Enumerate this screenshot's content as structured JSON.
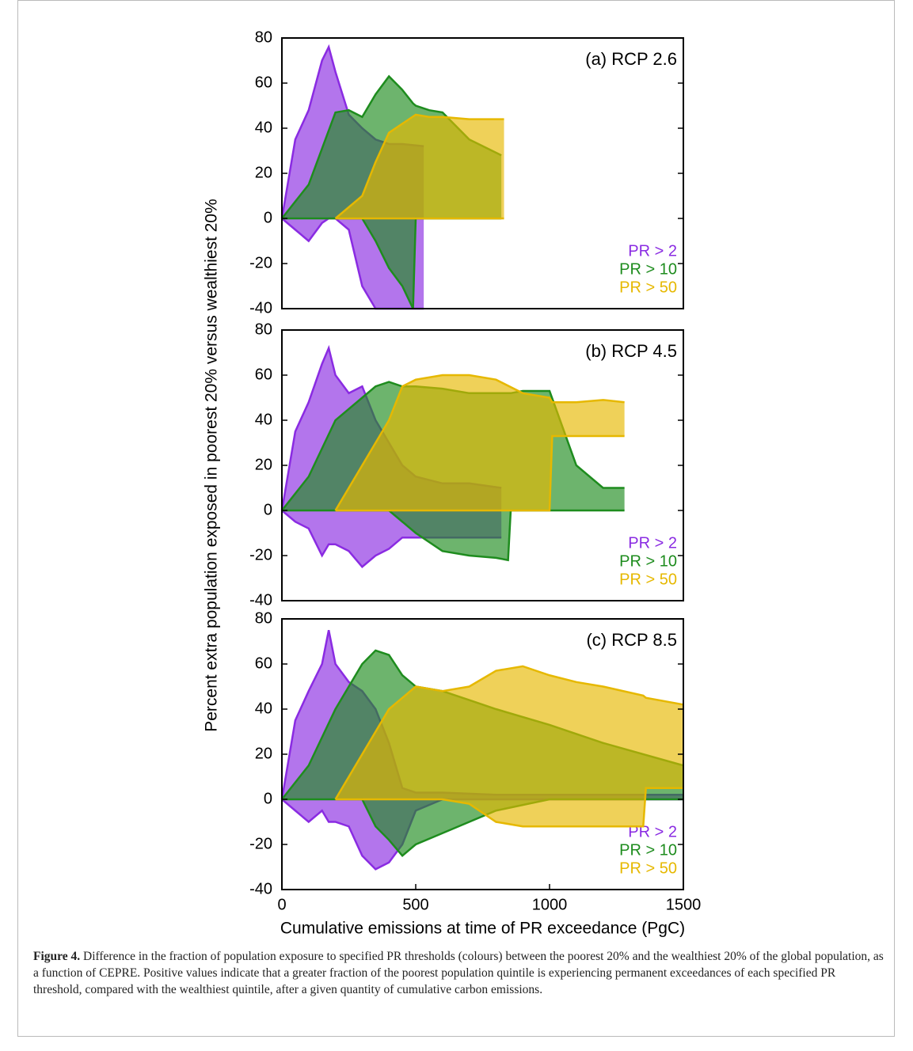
{
  "chart_data": [
    {
      "type": "band",
      "annotation": "(a) RCP 2.6",
      "xlim": [
        0,
        1500
      ],
      "ylim": [
        -40,
        80
      ],
      "yticks": [
        -40,
        -20,
        0,
        20,
        40,
        60,
        80
      ],
      "series": [
        {
          "name": "PR > 2",
          "color": "#8a2be2",
          "x": [
            0,
            50,
            100,
            150,
            175,
            200,
            250,
            300,
            350,
            400,
            450,
            530
          ],
          "upper": [
            0,
            35,
            48,
            70,
            76,
            65,
            46,
            40,
            35,
            33,
            33,
            32
          ],
          "lower": [
            0,
            -5,
            -10,
            -2,
            0,
            0,
            -5,
            -30,
            -40,
            -40,
            -40,
            -40
          ]
        },
        {
          "name": "PR > 10",
          "color": "#1e8c1e",
          "x": [
            0,
            100,
            200,
            250,
            300,
            350,
            400,
            450,
            490,
            500,
            550,
            600,
            700,
            820
          ],
          "upper": [
            0,
            15,
            47,
            48,
            45,
            55,
            63,
            57,
            51,
            50,
            48,
            47,
            35,
            28
          ],
          "lower": [
            0,
            0,
            0,
            0,
            0,
            -10,
            -22,
            -30,
            -40,
            0,
            0,
            0,
            0,
            0
          ]
        },
        {
          "name": "PR > 50",
          "color": "#e6b800",
          "x": [
            200,
            300,
            350,
            400,
            450,
            500,
            550,
            600,
            700,
            830
          ],
          "upper": [
            0,
            10,
            25,
            38,
            42,
            46,
            45,
            45,
            44,
            44
          ],
          "lower": [
            0,
            0,
            0,
            0,
            0,
            0,
            0,
            0,
            0,
            0
          ]
        }
      ]
    },
    {
      "type": "band",
      "annotation": "(b) RCP 4.5",
      "ylabel": "Percent extra population exposed in poorest 20% versus wealthiest 20%",
      "xlim": [
        0,
        1500
      ],
      "ylim": [
        -40,
        80
      ],
      "yticks": [
        -40,
        -20,
        0,
        20,
        40,
        60,
        80
      ],
      "series": [
        {
          "name": "PR > 2",
          "color": "#8a2be2",
          "x": [
            0,
            50,
            100,
            150,
            175,
            200,
            250,
            300,
            350,
            400,
            450,
            500,
            600,
            700,
            820
          ],
          "upper": [
            0,
            35,
            48,
            65,
            72,
            60,
            52,
            55,
            40,
            30,
            20,
            15,
            12,
            12,
            10
          ],
          "lower": [
            0,
            -5,
            -8,
            -20,
            -15,
            -15,
            -18,
            -25,
            -20,
            -17,
            -12,
            -12,
            -12,
            -12,
            -12
          ]
        },
        {
          "name": "PR > 10",
          "color": "#1e8c1e",
          "x": [
            0,
            100,
            200,
            300,
            350,
            400,
            450,
            500,
            600,
            700,
            800,
            845,
            855,
            900,
            1000,
            1100,
            1200,
            1280
          ],
          "upper": [
            0,
            15,
            40,
            50,
            55,
            57,
            55,
            55,
            54,
            52,
            52,
            52,
            52,
            53,
            53,
            20,
            10,
            10
          ],
          "lower": [
            0,
            0,
            0,
            0,
            0,
            0,
            -5,
            -10,
            -18,
            -20,
            -21,
            -22,
            0,
            0,
            0,
            0,
            0,
            0
          ]
        },
        {
          "name": "PR > 50",
          "color": "#e6b800",
          "x": [
            200,
            300,
            400,
            450,
            500,
            600,
            700,
            800,
            900,
            1000,
            1010,
            1100,
            1200,
            1280
          ],
          "upper": [
            0,
            20,
            40,
            55,
            58,
            60,
            60,
            58,
            52,
            50,
            48,
            48,
            49,
            48
          ],
          "lower": [
            0,
            0,
            0,
            0,
            0,
            0,
            0,
            0,
            0,
            0,
            33,
            33,
            33,
            33
          ]
        }
      ]
    },
    {
      "type": "band",
      "annotation": "(c) RCP 8.5",
      "xlabel": "Cumulative emissions at time of PR exceedance (PgC)",
      "xlim": [
        0,
        1500
      ],
      "xticks": [
        0,
        500,
        1000,
        1500
      ],
      "ylim": [
        -40,
        80
      ],
      "yticks": [
        -40,
        -20,
        0,
        20,
        40,
        60,
        80
      ],
      "series": [
        {
          "name": "PR > 2",
          "color": "#8a2be2",
          "x": [
            0,
            50,
            100,
            150,
            175,
            200,
            250,
            300,
            350,
            400,
            450,
            500,
            600,
            800,
            1000,
            1500
          ],
          "upper": [
            0,
            35,
            48,
            60,
            75,
            60,
            52,
            48,
            40,
            25,
            5,
            3,
            3,
            2,
            2,
            2
          ],
          "lower": [
            0,
            -5,
            -10,
            -5,
            -10,
            -10,
            -12,
            -25,
            -31,
            -28,
            -20,
            -5,
            0,
            0,
            0,
            0
          ]
        },
        {
          "name": "PR > 10",
          "color": "#1e8c1e",
          "x": [
            0,
            100,
            200,
            300,
            350,
            400,
            450,
            500,
            600,
            700,
            800,
            1000,
            1200,
            1500
          ],
          "upper": [
            0,
            15,
            40,
            60,
            66,
            64,
            55,
            50,
            48,
            44,
            40,
            33,
            25,
            15
          ],
          "lower": [
            0,
            0,
            0,
            0,
            -12,
            -18,
            -25,
            -20,
            -15,
            -10,
            -5,
            0,
            0,
            0
          ]
        },
        {
          "name": "PR > 50",
          "color": "#e6b800",
          "x": [
            200,
            300,
            400,
            500,
            600,
            700,
            800,
            900,
            1000,
            1100,
            1200,
            1350,
            1360,
            1500
          ],
          "upper": [
            0,
            20,
            40,
            50,
            48,
            50,
            57,
            59,
            55,
            52,
            50,
            46,
            45,
            42
          ],
          "lower": [
            0,
            0,
            0,
            0,
            0,
            -2,
            -10,
            -12,
            -12,
            -12,
            -12,
            -12,
            5,
            5
          ]
        }
      ]
    }
  ],
  "caption": {
    "label": "Figure 4.",
    "text": "Difference in the fraction of population exposure to specified PR thresholds (colours) between the poorest 20% and the wealthiest 20% of the global population, as a function of CEPRE. Positive values indicate that a greater fraction of the poorest population quintile is experiencing permanent exceedances of each specified PR threshold, compared with the wealthiest quintile, after a given quantity of cumulative carbon emissions."
  }
}
